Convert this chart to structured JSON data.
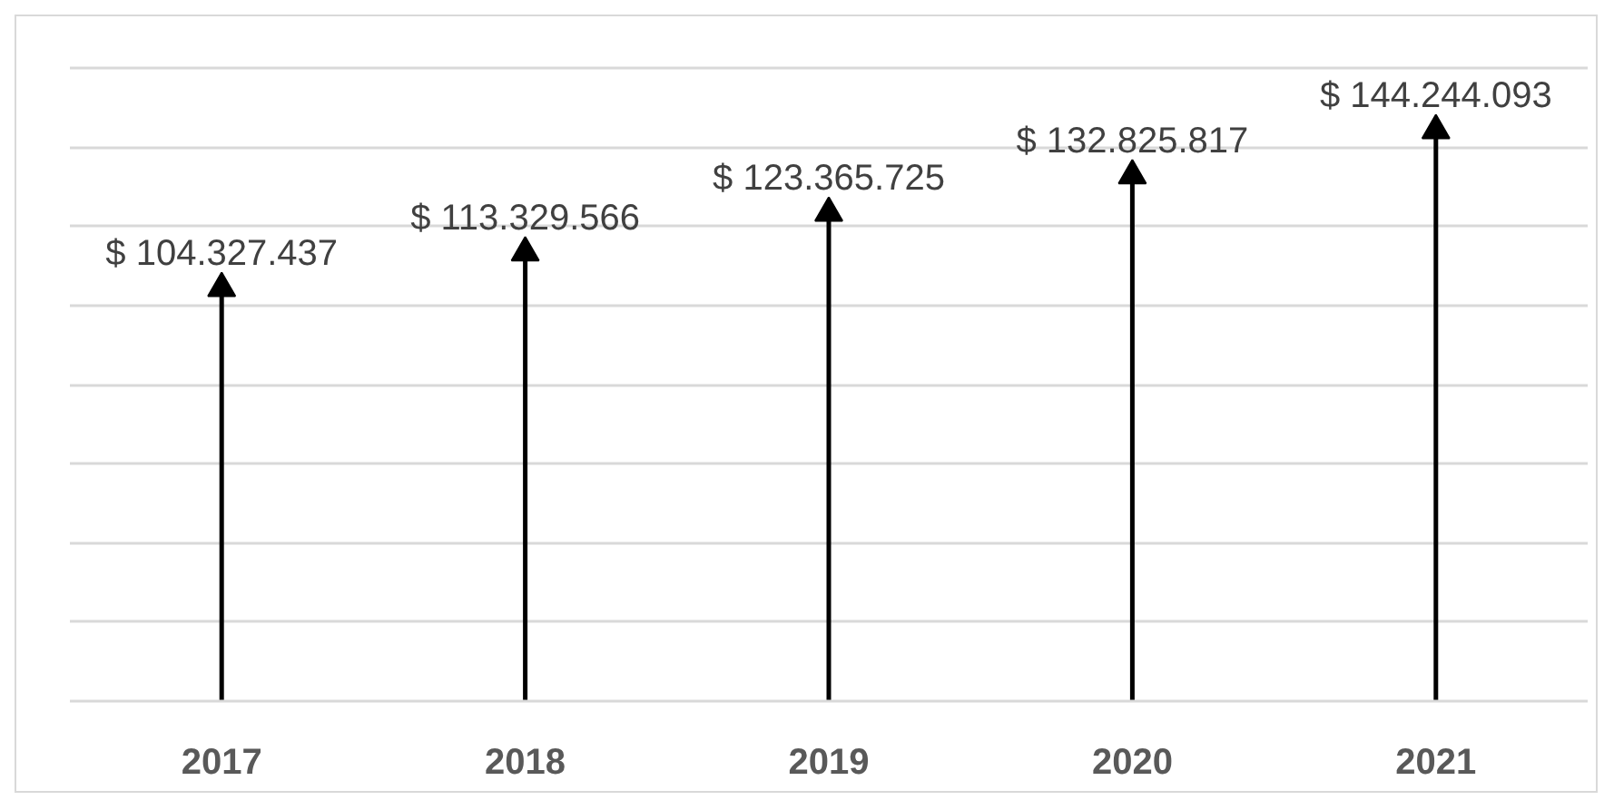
{
  "chart_data": {
    "type": "lollipop",
    "categories": [
      "2017",
      "2018",
      "2019",
      "2020",
      "2021"
    ],
    "values": [
      104327437,
      113329566,
      123365725,
      132825817,
      144244093
    ],
    "value_labels": [
      "$ 104.327.437",
      "$ 113.329.566",
      "$ 123.365.725",
      "$ 132.825.817",
      "$ 144.244.093"
    ],
    "color": "#000000",
    "marker": "triangle",
    "ylim": [
      0,
      160000000
    ],
    "tick_labels": "x",
    "grid": "y"
  }
}
